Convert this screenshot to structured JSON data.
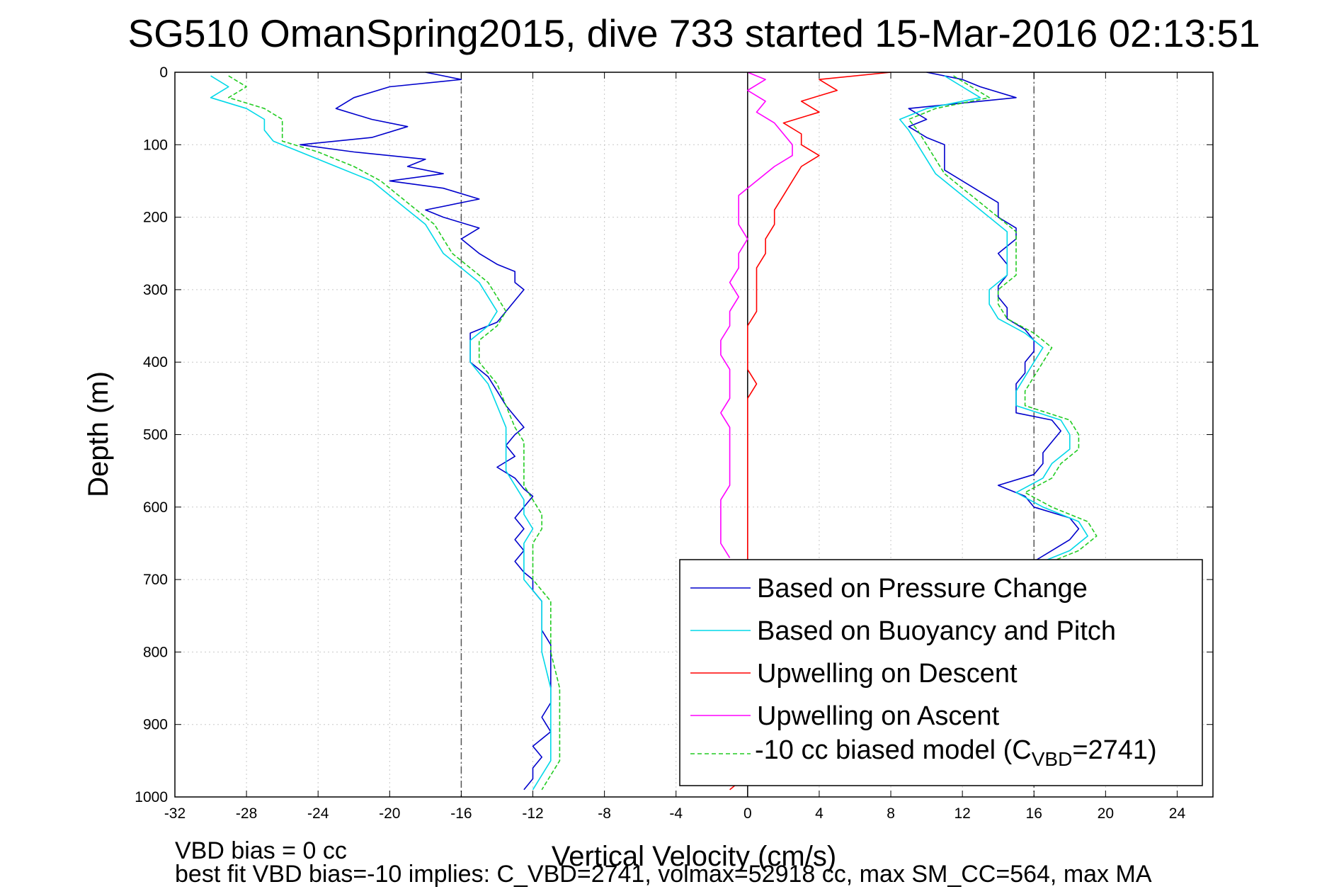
{
  "chart_data": {
    "type": "line",
    "title": "SG510 OmanSpring2015, dive 733 started 15-Mar-2016 02:13:51",
    "xlabel": "Vertical Velocity (cm/s)",
    "ylabel": "Depth (m)",
    "xlim": [
      -32,
      26
    ],
    "ylim": [
      0,
      1000
    ],
    "y_reversed": true,
    "grid": true,
    "x_ticks": [
      -32,
      -28,
      -24,
      -20,
      -16,
      -12,
      -8,
      -4,
      0,
      4,
      8,
      12,
      16,
      20,
      24
    ],
    "y_ticks": [
      0,
      100,
      200,
      300,
      400,
      500,
      600,
      700,
      800,
      900,
      1000
    ],
    "reference_lines": [
      {
        "x": -16,
        "style": "dash-dot",
        "color": "#555555"
      },
      {
        "x": 16,
        "style": "dash-dot",
        "color": "#555555"
      },
      {
        "x": 0,
        "style": "solid",
        "color": "#000000"
      }
    ],
    "legend_position": "bottom-right",
    "series": [
      {
        "name": "Based on Pressure Change",
        "color": "#0000cc",
        "segments": [
          {
            "depth": [
              0,
              10,
              20,
              35,
              50,
              65,
              75,
              90,
              100,
              110,
              120,
              130,
              140,
              150,
              160,
              175,
              190,
              200,
              215,
              230,
              250,
              265,
              275,
              290,
              300,
              315,
              330,
              345,
              360,
              380,
              400,
              420,
              440,
              460,
              475,
              490,
              500,
              515,
              530,
              545,
              560,
              575,
              585,
              600,
              615,
              630,
              645,
              660,
              675,
              690,
              700,
              715,
              730,
              750,
              770,
              790,
              810,
              830,
              850,
              870,
              890,
              910,
              930,
              945,
              960,
              975,
              990
            ],
            "x": [
              -18,
              -16,
              -20,
              -22,
              -23,
              -21,
              -19,
              -21,
              -25,
              -22,
              -18,
              -19,
              -17,
              -20,
              -17,
              -15,
              -18,
              -17,
              -15,
              -16,
              -15,
              -14,
              -13,
              -13,
              -12.5,
              -13,
              -13.5,
              -14,
              -15.5,
              -15.5,
              -15.5,
              -14.5,
              -14,
              -13.5,
              -13,
              -12.5,
              -13,
              -13.5,
              -13,
              -14,
              -13,
              -12.5,
              -12,
              -12.5,
              -13,
              -12.5,
              -13,
              -12.5,
              -13,
              -12.5,
              -12,
              -12,
              -11.5,
              -11.5,
              -11.5,
              -11,
              -11,
              -11,
              -11,
              -11,
              -11.5,
              -11,
              -12,
              -11.5,
              -12,
              -12,
              -12.5
            ]
          },
          {
            "depth": [
              0,
              10,
              20,
              35,
              50,
              65,
              75,
              90,
              100,
              110,
              120,
              135,
              150,
              165,
              180,
              200,
              215,
              230,
              250,
              265,
              280,
              295,
              310,
              325,
              340,
              355,
              370,
              385,
              400,
              415,
              430,
              450,
              470,
              480,
              495,
              510,
              525,
              540,
              555,
              570,
              585,
              600,
              615,
              630,
              645,
              660,
              675,
              690,
              700,
              710,
              720
            ],
            "x": [
              10,
              12,
              13,
              15,
              9,
              10,
              9,
              10,
              11,
              11,
              11,
              11,
              12,
              13,
              14,
              14,
              15,
              15,
              14,
              14.5,
              14.5,
              14,
              14,
              14.5,
              14.5,
              15.5,
              16,
              16,
              15.5,
              15.5,
              15,
              15,
              15,
              17,
              17.5,
              17,
              16.5,
              16.5,
              16,
              14,
              15.5,
              16,
              18,
              18.5,
              18,
              17,
              16,
              15,
              15.5,
              16,
              16
            ]
          }
        ]
      },
      {
        "name": "Based on Buoyancy and Pitch",
        "color": "#00d8e8",
        "segments": [
          {
            "depth": [
              5,
              20,
              35,
              50,
              65,
              80,
              95,
              110,
              130,
              150,
              170,
              190,
              210,
              230,
              250,
              270,
              290,
              310,
              330,
              350,
              370,
              400,
              430,
              460,
              490,
              510,
              530,
              550,
              570,
              590,
              610,
              630,
              650,
              680,
              700,
              730,
              760,
              800,
              850,
              900,
              950,
              990
            ],
            "x": [
              -30,
              -29,
              -30,
              -28,
              -27,
              -27,
              -26.5,
              -25,
              -23,
              -21,
              -20,
              -19,
              -18,
              -17.5,
              -17,
              -16,
              -15,
              -14.5,
              -14,
              -14.5,
              -15.5,
              -15.5,
              -14.5,
              -14,
              -13.5,
              -13.5,
              -13.5,
              -13.5,
              -13,
              -12.5,
              -12.5,
              -12,
              -12.5,
              -12.5,
              -12.5,
              -11.5,
              -11.5,
              -11.5,
              -11,
              -11,
              -11,
              -12
            ]
          },
          {
            "depth": [
              5,
              20,
              35,
              50,
              65,
              80,
              100,
              120,
              140,
              160,
              180,
              200,
              220,
              240,
              260,
              280,
              300,
              320,
              340,
              360,
              380,
              400,
              420,
              440,
              460,
              480,
              500,
              520,
              540,
              560,
              580,
              600,
              620,
              640,
              660,
              680
            ],
            "x": [
              11,
              12,
              13,
              10,
              8.5,
              9,
              9.5,
              10,
              10.5,
              11.5,
              12.5,
              13.5,
              14.5,
              14.5,
              14.5,
              14.5,
              13.5,
              13.5,
              14,
              15.5,
              16.5,
              16,
              15.5,
              15,
              15,
              17.5,
              18,
              18,
              17,
              16.5,
              15,
              16.5,
              18.5,
              19,
              18,
              16
            ]
          }
        ]
      },
      {
        "name": "Upwelling on Descent",
        "color": "#ff0000",
        "segments": [
          {
            "depth": [
              0,
              10,
              25,
              40,
              55,
              70,
              85,
              100,
              115,
              130,
              150,
              170,
              190,
              210,
              230,
              250,
              270,
              290,
              310,
              330,
              350,
              370,
              390,
              410,
              430,
              450,
              470,
              490,
              510,
              530,
              550,
              570,
              590,
              610,
              630,
              650,
              670,
              690,
              710,
              730,
              750,
              770,
              790,
              810,
              830,
              850,
              870,
              890,
              910,
              930,
              950,
              970,
              990
            ],
            "x": [
              8,
              4,
              5,
              3,
              4,
              2,
              3,
              3,
              4,
              3,
              2.5,
              2,
              1.5,
              1.5,
              1,
              1,
              0.5,
              0.5,
              0.5,
              0.5,
              0,
              0,
              0,
              0,
              0.5,
              0,
              0,
              0,
              0,
              0,
              0,
              0,
              0,
              0,
              0,
              0,
              0,
              0,
              0,
              0,
              0,
              0,
              0,
              0,
              0,
              0,
              0,
              0,
              0,
              0,
              0,
              0,
              -1
            ]
          }
        ]
      },
      {
        "name": "Upwelling on Ascent",
        "color": "#ff00ff",
        "segments": [
          {
            "depth": [
              0,
              10,
              25,
              40,
              55,
              70,
              85,
              100,
              115,
              130,
              150,
              170,
              190,
              210,
              230,
              250,
              270,
              290,
              310,
              330,
              350,
              370,
              390,
              410,
              430,
              450,
              470,
              490,
              510,
              530,
              550,
              570,
              590,
              610,
              630,
              650,
              670
            ],
            "x": [
              0,
              1,
              0,
              1,
              0.5,
              1.5,
              2,
              2.5,
              2.5,
              1.5,
              0.5,
              -0.5,
              -0.5,
              -0.5,
              0,
              -0.5,
              -0.5,
              -1,
              -0.5,
              -1,
              -1,
              -1.5,
              -1.5,
              -1,
              -1,
              -1,
              -1.5,
              -1,
              -1,
              -1,
              -1,
              -1,
              -1.5,
              -1.5,
              -1.5,
              -1.5,
              -1
            ]
          }
        ]
      },
      {
        "name": "-10 cc biased model (C_VBD=2741)",
        "color": "#22cc22",
        "segments": [
          {
            "depth": [
              5,
              20,
              35,
              50,
              65,
              80,
              95,
              110,
              130,
              150,
              170,
              190,
              210,
              230,
              250,
              270,
              290,
              310,
              330,
              350,
              370,
              400,
              430,
              460,
              490,
              510,
              530,
              550,
              570,
              590,
              610,
              630,
              650,
              680,
              700,
              730,
              760,
              800,
              850,
              900,
              950,
              990
            ],
            "x": [
              -29,
              -28,
              -29,
              -27,
              -26,
              -26,
              -26,
              -24,
              -22,
              -20.5,
              -19.5,
              -18.5,
              -17.5,
              -17,
              -16.5,
              -15.5,
              -14.5,
              -14,
              -13.5,
              -14,
              -15,
              -15,
              -14,
              -13.5,
              -13,
              -12.5,
              -12.5,
              -12.5,
              -12.5,
              -12,
              -11.5,
              -11.5,
              -12,
              -12,
              -12,
              -11,
              -11,
              -11,
              -10.5,
              -10.5,
              -10.5,
              -11.5
            ]
          },
          {
            "depth": [
              5,
              20,
              35,
              50,
              65,
              80,
              100,
              120,
              140,
              160,
              180,
              200,
              220,
              240,
              260,
              280,
              300,
              320,
              340,
              360,
              380,
              400,
              420,
              440,
              460,
              480,
              500,
              520,
              540,
              560,
              580,
              600,
              620,
              640,
              660,
              680
            ],
            "x": [
              11.5,
              12.5,
              13.5,
              10.5,
              9,
              9.5,
              10,
              10.5,
              11,
              12,
              13,
              14,
              15,
              15,
              15,
              15,
              14,
              14,
              14.5,
              16,
              17,
              16.5,
              16,
              15.5,
              15.5,
              18,
              18.5,
              18.5,
              17.5,
              17,
              15.5,
              17,
              19,
              19.5,
              18.5,
              16.5
            ]
          }
        ]
      }
    ]
  },
  "footer": {
    "line1": "VBD bias = 0 cc",
    "line2": "best fit VBD bias=-10 implies: C_VBD=2741, volmax=52918 cc, max SM_CC=564, max MA"
  }
}
